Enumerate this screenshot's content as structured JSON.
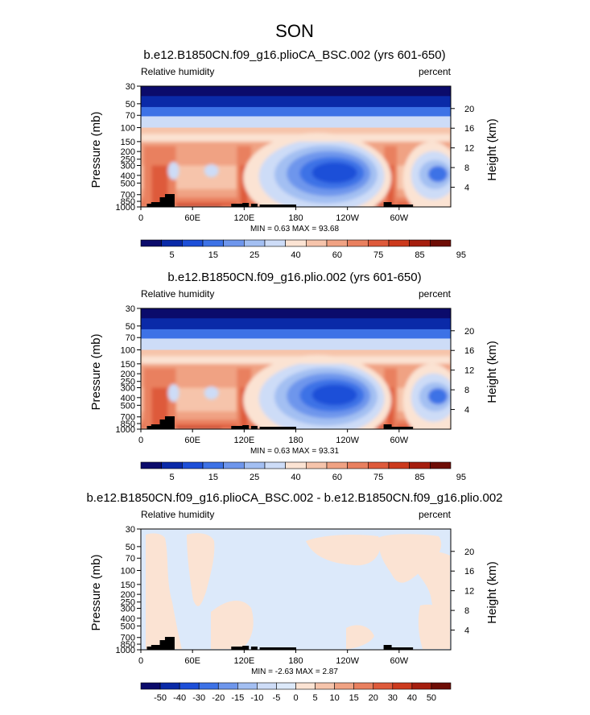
{
  "figure": {
    "title": "SON"
  },
  "chart_data": [
    {
      "type": "heatmap",
      "title": "b.e12.B1850CN.f09_g16.plioCA_BSC.002 (yrs 601-650)",
      "left_label": "Relative humidity",
      "right_label": "percent",
      "ylabel": "Pressure (mb)",
      "y2label": "Height (km)",
      "x_ticks": [
        "0",
        "60E",
        "120E",
        "180",
        "120W",
        "60W"
      ],
      "y_ticks": [
        "30",
        "50",
        "70",
        "100",
        "150",
        "200",
        "250",
        "300",
        "400",
        "500",
        "700",
        "850",
        "1000"
      ],
      "y2_ticks": [
        "20",
        "16",
        "12",
        "8",
        "4"
      ],
      "stats_text": "MIN =    0.63   MAX =   93.68",
      "min": 0.63,
      "max": 93.68,
      "colorbar_labels": [
        "5",
        "15",
        "25",
        "40",
        "60",
        "75",
        "85",
        "95"
      ],
      "colors": [
        "#0b0b6b",
        "#0a2aa8",
        "#1d4fd8",
        "#3d72e6",
        "#6e96ec",
        "#a3bff2",
        "#cddcf7",
        "#fbe3d3",
        "#f6c4ab",
        "#f0a283",
        "#e9805f",
        "#de5a3b",
        "#cc3a1d",
        "#a51e0e",
        "#6e0d05"
      ],
      "x_range": [
        0,
        360
      ],
      "y_range": [
        1000,
        30
      ]
    },
    {
      "type": "heatmap",
      "title": "b.e12.B1850CN.f09_g16.plio.002 (yrs 601-650)",
      "left_label": "Relative humidity",
      "right_label": "percent",
      "ylabel": "Pressure (mb)",
      "y2label": "Height (km)",
      "x_ticks": [
        "0",
        "60E",
        "120E",
        "180",
        "120W",
        "60W"
      ],
      "y_ticks": [
        "30",
        "50",
        "70",
        "100",
        "150",
        "200",
        "250",
        "300",
        "400",
        "500",
        "700",
        "850",
        "1000"
      ],
      "y2_ticks": [
        "20",
        "16",
        "12",
        "8",
        "4"
      ],
      "stats_text": "MIN =    0.63   MAX =   93.31",
      "min": 0.63,
      "max": 93.31,
      "colorbar_labels": [
        "5",
        "15",
        "25",
        "40",
        "60",
        "75",
        "85",
        "95"
      ],
      "colors": [
        "#0b0b6b",
        "#0a2aa8",
        "#1d4fd8",
        "#3d72e6",
        "#6e96ec",
        "#a3bff2",
        "#cddcf7",
        "#fbe3d3",
        "#f6c4ab",
        "#f0a283",
        "#e9805f",
        "#de5a3b",
        "#cc3a1d",
        "#a51e0e",
        "#6e0d05"
      ],
      "x_range": [
        0,
        360
      ],
      "y_range": [
        1000,
        30
      ]
    },
    {
      "type": "heatmap",
      "title": "b.e12.B1850CN.f09_g16.plioCA_BSC.002 - b.e12.B1850CN.f09_g16.plio.002",
      "left_label": "Relative humidity",
      "right_label": "percent",
      "ylabel": "Pressure (mb)",
      "y2label": "Height (km)",
      "x_ticks": [
        "0",
        "60E",
        "120E",
        "180",
        "120W",
        "60W"
      ],
      "y_ticks": [
        "30",
        "50",
        "70",
        "100",
        "150",
        "200",
        "250",
        "300",
        "400",
        "500",
        "700",
        "850",
        "1000"
      ],
      "y2_ticks": [
        "20",
        "16",
        "12",
        "8",
        "4"
      ],
      "stats_text": "MIN =   -2.63   MAX =    2.87",
      "min": -2.63,
      "max": 2.87,
      "colorbar_labels": [
        "-50",
        "-40",
        "-30",
        "-20",
        "-15",
        "-10",
        "-5",
        "0",
        "5",
        "10",
        "15",
        "20",
        "30",
        "40",
        "50"
      ],
      "colors": [
        "#0b0b6b",
        "#0a2aa8",
        "#1d4fd8",
        "#3d72e6",
        "#6e96ec",
        "#a3bff2",
        "#cddcf7",
        "#dce9fa",
        "#fbe3d3",
        "#f6c4ab",
        "#f0a283",
        "#e9805f",
        "#de5a3b",
        "#cc3a1d",
        "#a51e0e",
        "#6e0d05"
      ],
      "x_range": [
        0,
        360
      ],
      "y_range": [
        1000,
        30
      ]
    }
  ]
}
